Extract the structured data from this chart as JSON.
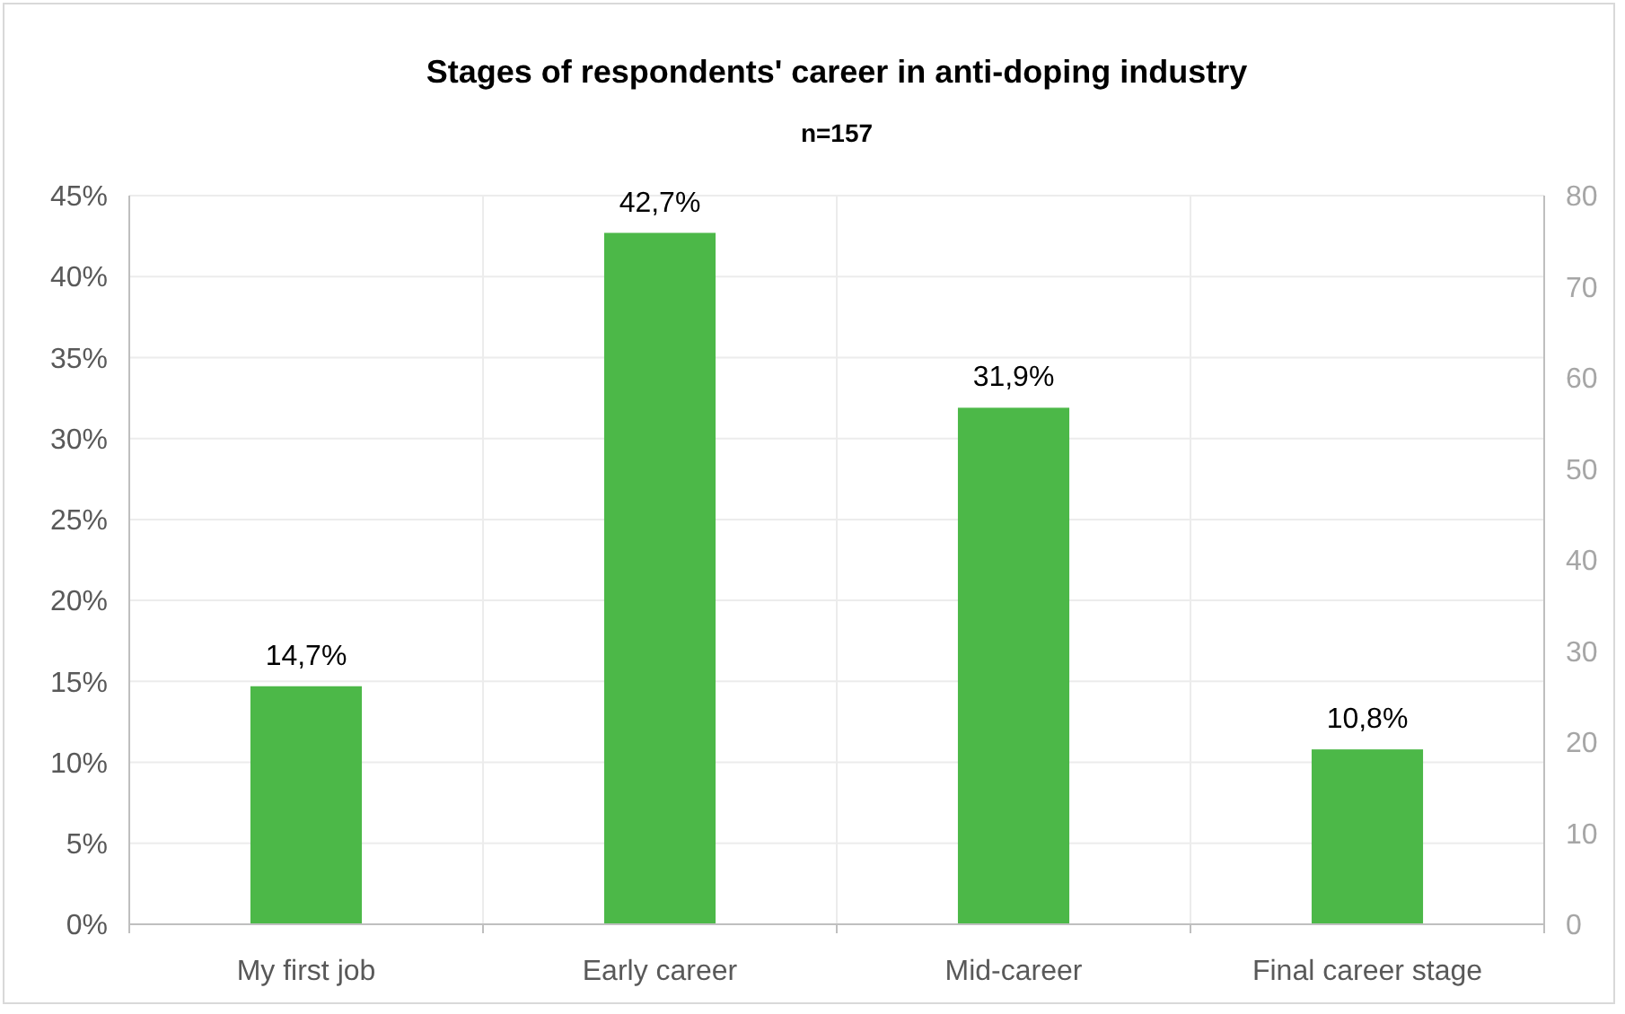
{
  "chart_data": {
    "type": "bar",
    "title": "Stages of respondents' career in anti-doping industry",
    "subtitle": "n=157",
    "categories": [
      "My first job",
      "Early career",
      "Mid-career",
      "Final career stage"
    ],
    "values": [
      14.7,
      42.7,
      31.9,
      10.8
    ],
    "color": "#4cb848",
    "value_labels": [
      "14,7%",
      "42,7%",
      "31,9%",
      "10,8%"
    ],
    "ylim": [
      0,
      45
    ],
    "yticks": [
      {
        "value": 0,
        "label": "0%"
      },
      {
        "value": 5,
        "label": "5%"
      },
      {
        "value": 10,
        "label": "10%"
      },
      {
        "value": 15,
        "label": "15%"
      },
      {
        "value": 20,
        "label": "20%"
      },
      {
        "value": 25,
        "label": "25%"
      },
      {
        "value": 30,
        "label": "30%"
      },
      {
        "value": 35,
        "label": "35%"
      },
      {
        "value": 40,
        "label": "40%"
      },
      {
        "value": 45,
        "label": "45%"
      }
    ],
    "y2lim": [
      0,
      80
    ],
    "y2ticks": [
      0,
      10,
      20,
      30,
      40,
      50,
      60,
      70,
      80
    ],
    "grid": true
  }
}
